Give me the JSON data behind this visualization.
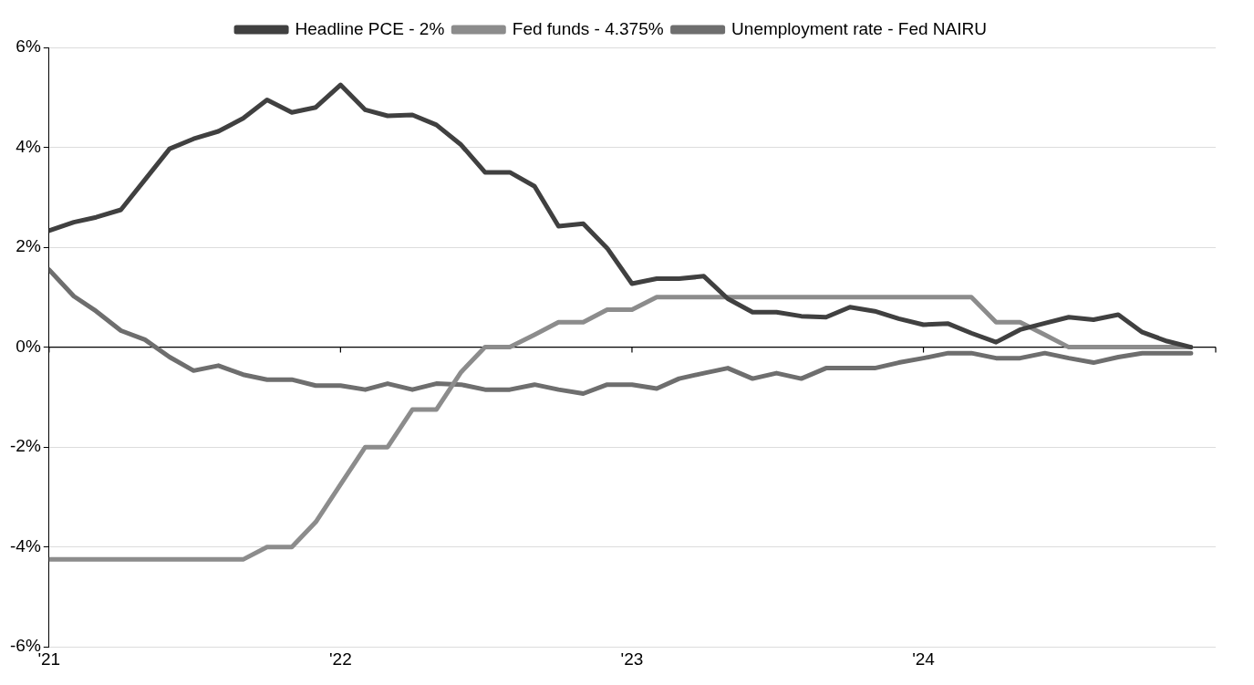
{
  "chart_data": {
    "type": "line",
    "x": [
      "2021-01",
      "2021-02",
      "2021-03",
      "2021-04",
      "2021-05",
      "2021-06",
      "2021-07",
      "2021-08",
      "2021-09",
      "2021-10",
      "2021-11",
      "2021-12",
      "2022-01",
      "2022-02",
      "2022-03",
      "2022-04",
      "2022-05",
      "2022-06",
      "2022-07",
      "2022-08",
      "2022-09",
      "2022-10",
      "2022-11",
      "2022-12",
      "2023-01",
      "2023-02",
      "2023-03",
      "2023-04",
      "2023-05",
      "2023-06",
      "2023-07",
      "2023-08",
      "2023-09",
      "2023-10",
      "2023-11",
      "2023-12",
      "2024-01",
      "2024-02",
      "2024-03",
      "2024-04",
      "2024-05",
      "2024-06",
      "2024-07",
      "2024-08",
      "2024-09",
      "2024-10",
      "2024-11",
      "2024-12"
    ],
    "series": [
      {
        "name": "Headline PCE - 2%",
        "color": "#404040",
        "values": [
          2.33,
          2.5,
          2.6,
          2.75,
          3.35,
          3.97,
          4.17,
          4.32,
          4.58,
          4.95,
          4.7,
          4.8,
          5.25,
          4.75,
          4.63,
          4.65,
          4.45,
          4.05,
          3.5,
          3.5,
          3.22,
          2.42,
          2.47,
          1.98,
          1.27,
          1.37,
          1.37,
          1.42,
          0.97,
          0.7,
          0.7,
          0.62,
          0.6,
          0.8,
          0.72,
          0.57,
          0.45,
          0.47,
          0.28,
          0.1,
          0.35,
          0.48,
          0.6,
          0.55,
          0.65,
          0.3,
          0.12,
          0.0
        ]
      },
      {
        "name": "Fed funds - 4.375%",
        "color": "#8c8c8c",
        "values": [
          -4.25,
          -4.25,
          -4.25,
          -4.25,
          -4.25,
          -4.25,
          -4.25,
          -4.25,
          -4.25,
          -4,
          -4,
          -3.5,
          -2.75,
          -2,
          -2,
          -1.25,
          -1.25,
          -0.5,
          0,
          0,
          0.25,
          0.5,
          0.5,
          0.75,
          0.75,
          1,
          1,
          1,
          1,
          1,
          1,
          1,
          1,
          1,
          1,
          1,
          1,
          1,
          1,
          0.5,
          0.5,
          0.25,
          0,
          0,
          0,
          0,
          0,
          0
        ]
      },
      {
        "name": "Unemployment rate - Fed NAIRU",
        "color": "#6e6e6e",
        "values": [
          1.55,
          1.02,
          0.72,
          0.33,
          0.15,
          -0.2,
          -0.47,
          -0.37,
          -0.55,
          -0.65,
          -0.65,
          -0.77,
          -0.77,
          -0.85,
          -0.73,
          -0.85,
          -0.73,
          -0.75,
          -0.85,
          -0.85,
          -0.75,
          -0.85,
          -0.93,
          -0.75,
          -0.75,
          -0.83,
          -0.63,
          -0.52,
          -0.42,
          -0.63,
          -0.52,
          -0.63,
          -0.42,
          -0.42,
          -0.42,
          -0.31,
          -0.22,
          -0.12,
          -0.12,
          -0.22,
          -0.22,
          -0.12,
          -0.22,
          -0.31,
          -0.2,
          -0.12,
          -0.12,
          -0.12
        ]
      }
    ],
    "xlim": [
      "2021-01",
      "2025-01"
    ],
    "xticks": [
      {
        "value": "2021-01",
        "label": "'21"
      },
      {
        "value": "2022-01",
        "label": "'22"
      },
      {
        "value": "2023-01",
        "label": "'23"
      },
      {
        "value": "2024-01",
        "label": "'24"
      }
    ],
    "ylim": [
      -6,
      6
    ],
    "yticks": [
      {
        "value": -6,
        "label": "-6%"
      },
      {
        "value": -4,
        "label": "-4%"
      },
      {
        "value": -2,
        "label": "-2%"
      },
      {
        "value": 0,
        "label": "0%"
      },
      {
        "value": 2,
        "label": "2%"
      },
      {
        "value": 4,
        "label": "4%"
      },
      {
        "value": 6,
        "label": "6%"
      }
    ],
    "grid": "y",
    "legend": "top",
    "marker": "none",
    "line_style": "solid"
  }
}
